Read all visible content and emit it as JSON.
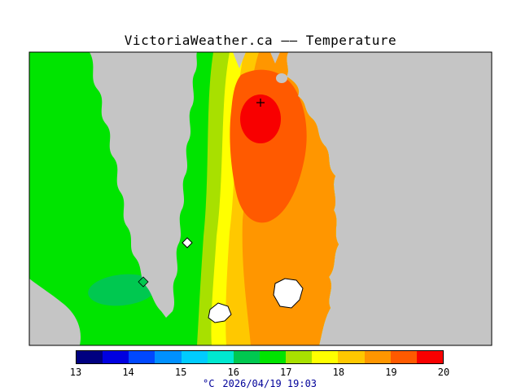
{
  "title": "VictoriaWeather.ca —— Temperature",
  "palette": {
    "water": "#c5c5c5",
    "green": "#00e400",
    "green_dark": "#00c850",
    "yellow_green": "#a8e000",
    "yellow": "#ffff00",
    "orange_yellow": "#ffc800",
    "orange": "#ff9600",
    "orange_deep": "#ff5a00",
    "red": "#f80000",
    "lake": "#ffffff",
    "border": "#000000"
  },
  "colorbar": {
    "ticks": [
      "13",
      "14",
      "15",
      "16",
      "17",
      "18",
      "19",
      "20"
    ],
    "segments": [
      "#000080",
      "#0000e0",
      "#0048ff",
      "#0090ff",
      "#00ccff",
      "#00e8d0",
      "#00c850",
      "#00e400",
      "#a8e000",
      "#ffff00",
      "#ffc800",
      "#ff9600",
      "#ff5a00",
      "#f80000"
    ],
    "units_label": "°C",
    "timestamp": "2026/04/19 19:03"
  },
  "chart_data": {
    "type": "heatmap",
    "title": "VictoriaWeather.ca —— Temperature",
    "variable": "Temperature",
    "units": "°C",
    "scale_min": 13,
    "scale_max": 20,
    "scale_step": 0.5,
    "scale_tick_labels": [
      "13",
      "14",
      "15",
      "16",
      "17",
      "18",
      "19",
      "20"
    ],
    "timestamp": "2026/04/19 19:03",
    "legend_position": "bottom",
    "description_of_field": "Filled temperature contours over the Victoria/Saanich Peninsula region: ~16.5-17°C (green) on the western landmass, warming eastward through 17-18°C (yellow-green/yellow) bands, 18-19°C (orange) over most of the peninsula, peaking ~19.5-20°C (red) hotspot near the northern head; surrounding water masked gray"
  }
}
